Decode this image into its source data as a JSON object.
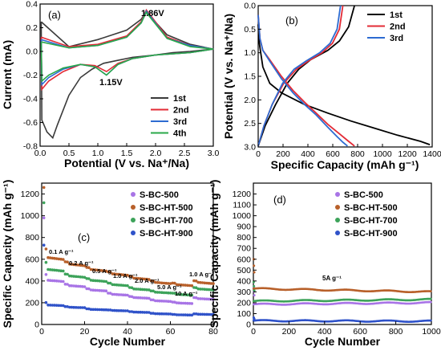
{
  "chart_data": [
    {
      "panel": "(a)",
      "type": "line",
      "xlabel": "Potential (V vs. Na⁺/Na)",
      "ylabel": "Current (mA)",
      "xlim": [
        0.0,
        3.0
      ],
      "ylim": [
        -0.8,
        0.4
      ],
      "xticks": [
        "0.0",
        "0.5",
        "1.0",
        "1.5",
        "2.0",
        "2.5",
        "3.0"
      ],
      "yticks": [
        "0.4",
        "0.2",
        "0.0",
        "-0.2",
        "-0.4",
        "-0.6",
        "-0.8"
      ],
      "legend": "bottom-right",
      "annotations": [
        "1.86V",
        "1.15V"
      ],
      "series": [
        {
          "name": "1st",
          "color": "#3a3a3a",
          "points": [
            [
              0.02,
              0.25
            ],
            [
              0.5,
              0.04
            ],
            [
              1.0,
              0.1
            ],
            [
              1.5,
              0.18
            ],
            [
              1.75,
              0.27
            ],
            [
              1.83,
              0.33
            ],
            [
              1.9,
              0.3
            ],
            [
              2.2,
              0.14
            ],
            [
              2.6,
              0.06
            ],
            [
              3.0,
              0.02
            ],
            [
              2.6,
              0.0
            ],
            [
              2.3,
              -0.01
            ],
            [
              2.0,
              -0.03
            ],
            [
              1.6,
              -0.05
            ],
            [
              1.3,
              -0.08
            ],
            [
              1.1,
              -0.1
            ],
            [
              0.9,
              -0.15
            ],
            [
              0.7,
              -0.22
            ],
            [
              0.5,
              -0.37
            ],
            [
              0.3,
              -0.62
            ],
            [
              0.22,
              -0.73
            ],
            [
              0.12,
              -0.68
            ],
            [
              0.03,
              -0.58
            ],
            [
              0.02,
              0.25
            ]
          ]
        },
        {
          "name": "2nd",
          "color": "#e32b36",
          "points": [
            [
              0.02,
              0.12
            ],
            [
              0.5,
              0.04
            ],
            [
              1.0,
              0.06
            ],
            [
              1.5,
              0.13
            ],
            [
              1.75,
              0.25
            ],
            [
              1.84,
              0.35
            ],
            [
              1.92,
              0.3
            ],
            [
              2.2,
              0.12
            ],
            [
              2.6,
              0.05
            ],
            [
              3.0,
              0.02
            ],
            [
              2.6,
              -0.01
            ],
            [
              2.0,
              -0.03
            ],
            [
              1.6,
              -0.06
            ],
            [
              1.35,
              -0.1
            ],
            [
              1.15,
              -0.17
            ],
            [
              0.95,
              -0.12
            ],
            [
              0.7,
              -0.11
            ],
            [
              0.4,
              -0.17
            ],
            [
              0.15,
              -0.25
            ],
            [
              0.03,
              -0.32
            ],
            [
              0.02,
              0.12
            ]
          ]
        },
        {
          "name": "3rd",
          "color": "#2d6bd1",
          "points": [
            [
              0.02,
              0.1
            ],
            [
              0.5,
              0.03
            ],
            [
              1.0,
              0.05
            ],
            [
              1.5,
              0.12
            ],
            [
              1.75,
              0.24
            ],
            [
              1.84,
              0.34
            ],
            [
              1.92,
              0.29
            ],
            [
              2.2,
              0.11
            ],
            [
              2.6,
              0.05
            ],
            [
              3.0,
              0.02
            ],
            [
              2.6,
              -0.01
            ],
            [
              2.0,
              -0.03
            ],
            [
              1.6,
              -0.06
            ],
            [
              1.35,
              -0.11
            ],
            [
              1.15,
              -0.2
            ],
            [
              0.95,
              -0.13
            ],
            [
              0.7,
              -0.11
            ],
            [
              0.4,
              -0.15
            ],
            [
              0.15,
              -0.22
            ],
            [
              0.03,
              -0.28
            ],
            [
              0.02,
              0.1
            ]
          ]
        },
        {
          "name": "4th",
          "color": "#2aa84a",
          "points": [
            [
              0.02,
              0.08
            ],
            [
              0.5,
              0.03
            ],
            [
              1.0,
              0.05
            ],
            [
              1.5,
              0.12
            ],
            [
              1.75,
              0.24
            ],
            [
              1.84,
              0.33
            ],
            [
              1.92,
              0.28
            ],
            [
              2.2,
              0.11
            ],
            [
              2.6,
              0.04
            ],
            [
              3.0,
              0.02
            ],
            [
              2.6,
              -0.01
            ],
            [
              2.0,
              -0.03
            ],
            [
              1.6,
              -0.06
            ],
            [
              1.35,
              -0.11
            ],
            [
              1.15,
              -0.2
            ],
            [
              0.95,
              -0.13
            ],
            [
              0.7,
              -0.11
            ],
            [
              0.4,
              -0.14
            ],
            [
              0.15,
              -0.2
            ],
            [
              0.03,
              -0.25
            ],
            [
              0.02,
              0.08
            ]
          ]
        }
      ]
    },
    {
      "panel": "(b)",
      "type": "line",
      "xlabel": "Specific Capacity (mAh g⁻¹)",
      "ylabel": "Potential (V vs. Na⁺/Na)",
      "xlim": [
        0,
        1500
      ],
      "ylim": [
        0.0,
        3.0
      ],
      "xticks": [
        "0",
        "200",
        "400",
        "600",
        "800",
        "1000",
        "1200",
        "1400"
      ],
      "yticks": [
        "0.0",
        "0.5",
        "1.0",
        "1.5",
        "2.0",
        "2.5",
        "3.0"
      ],
      "legend": "top-right",
      "series": [
        {
          "name": "1st",
          "color": "#000000",
          "discharge": [
            [
              0,
              2.6
            ],
            [
              10,
              2.2
            ],
            [
              40,
              1.7
            ],
            [
              100,
              1.35
            ],
            [
              200,
              1.15
            ],
            [
              400,
              0.9
            ],
            [
              600,
              0.72
            ],
            [
              800,
              0.55
            ],
            [
              1000,
              0.4
            ],
            [
              1200,
              0.25
            ],
            [
              1400,
              0.12
            ],
            [
              1480,
              0.05
            ]
          ],
          "charge": [
            [
              0,
              0.02
            ],
            [
              60,
              0.45
            ],
            [
              150,
              0.9
            ],
            [
              250,
              1.35
            ],
            [
              350,
              1.65
            ],
            [
              450,
              1.85
            ],
            [
              600,
              2.05
            ],
            [
              700,
              2.25
            ],
            [
              780,
              2.55
            ],
            [
              830,
              3.0
            ]
          ]
        },
        {
          "name": "2nd",
          "color": "#e32b36",
          "discharge": [
            [
              0,
              2.8
            ],
            [
              15,
              2.3
            ],
            [
              40,
              2.05
            ],
            [
              100,
              1.85
            ],
            [
              200,
              1.5
            ],
            [
              300,
              1.2
            ],
            [
              400,
              0.95
            ],
            [
              500,
              0.72
            ],
            [
              600,
              0.48
            ],
            [
              700,
              0.28
            ],
            [
              780,
              0.12
            ],
            [
              830,
              0.02
            ]
          ],
          "charge": [
            [
              0,
              0.02
            ],
            [
              50,
              0.45
            ],
            [
              120,
              0.9
            ],
            [
              220,
              1.35
            ],
            [
              330,
              1.65
            ],
            [
              430,
              1.82
            ],
            [
              550,
              2.0
            ],
            [
              640,
              2.2
            ],
            [
              700,
              2.5
            ],
            [
              730,
              3.0
            ]
          ]
        },
        {
          "name": "3rd",
          "color": "#2d6bd1",
          "discharge": [
            [
              0,
              2.8
            ],
            [
              15,
              2.3
            ],
            [
              40,
              2.05
            ],
            [
              100,
              1.82
            ],
            [
              200,
              1.45
            ],
            [
              300,
              1.15
            ],
            [
              400,
              0.9
            ],
            [
              500,
              0.68
            ],
            [
              600,
              0.42
            ],
            [
              680,
              0.22
            ],
            [
              730,
              0.1
            ],
            [
              770,
              0.02
            ]
          ],
          "charge": [
            [
              0,
              0.02
            ],
            [
              50,
              0.45
            ],
            [
              120,
              0.9
            ],
            [
              210,
              1.35
            ],
            [
              310,
              1.65
            ],
            [
              410,
              1.82
            ],
            [
              530,
              2.0
            ],
            [
              620,
              2.2
            ],
            [
              680,
              2.5
            ],
            [
              710,
              3.0
            ]
          ]
        }
      ]
    },
    {
      "panel": "(c)",
      "type": "scatter",
      "xlabel": "Cycle Number",
      "ylabel": "Specific Capacity (mAh g⁻¹)",
      "xlim": [
        0,
        80
      ],
      "ylim": [
        0,
        1300
      ],
      "xticks": [
        "0",
        "20",
        "40",
        "60",
        "80"
      ],
      "yticks": [
        "0",
        "200",
        "400",
        "600",
        "800",
        "1000",
        "1200"
      ],
      "legend": "top-right",
      "rate_labels": [
        "0.1 A g⁻¹",
        "0.2 A g⁻¹",
        "0.5 A g⁻¹",
        "1.0 A g⁻¹",
        "2.0 A g⁻¹",
        "5.0 A g⁻¹",
        "10 A g⁻¹",
        "1.0 A g⁻¹"
      ],
      "series": [
        {
          "name": "S-BC-500",
          "color": "#a874e6",
          "steps": [
            410,
            360,
            320,
            280,
            250,
            220,
            200,
            240
          ],
          "first": 980
        },
        {
          "name": "S-BC-HT-500",
          "color": "#b8602a",
          "steps": [
            620,
            560,
            510,
            470,
            430,
            390,
            370,
            390
          ],
          "first": 1260
        },
        {
          "name": "S-BC-HT-700",
          "color": "#3da35a",
          "steps": [
            510,
            450,
            410,
            370,
            330,
            300,
            280,
            330
          ],
          "first": 1120
        },
        {
          "name": "S-BC-HT-900",
          "color": "#2f52c9",
          "steps": [
            180,
            160,
            140,
            130,
            115,
            100,
            90,
            95
          ],
          "first": 730
        }
      ]
    },
    {
      "panel": "(d)",
      "type": "scatter",
      "xlabel": "Cycle Number",
      "ylabel": "Specific Capacity (mAh g⁻¹)",
      "xlim": [
        0,
        1000
      ],
      "ylim": [
        0,
        1300
      ],
      "xticks": [
        "0",
        "200",
        "400",
        "600",
        "800",
        "1000"
      ],
      "yticks": [
        "0",
        "100",
        "200",
        "300",
        "400",
        "500",
        "600",
        "700",
        "800",
        "900",
        "1000",
        "1100",
        "1200"
      ],
      "legend": "top-right",
      "annotations": [
        "5A g⁻¹"
      ],
      "series": [
        {
          "name": "S-BC-500",
          "color": "#a874e6",
          "start": 185,
          "end": 200
        },
        {
          "name": "S-BC-HT-500",
          "color": "#b8602a",
          "start": 330,
          "end": 300
        },
        {
          "name": "S-BC-HT-700",
          "color": "#3da35a",
          "start": 215,
          "end": 230
        },
        {
          "name": "S-BC-HT-900",
          "color": "#2f52c9",
          "start": 35,
          "end": 30
        }
      ]
    }
  ]
}
